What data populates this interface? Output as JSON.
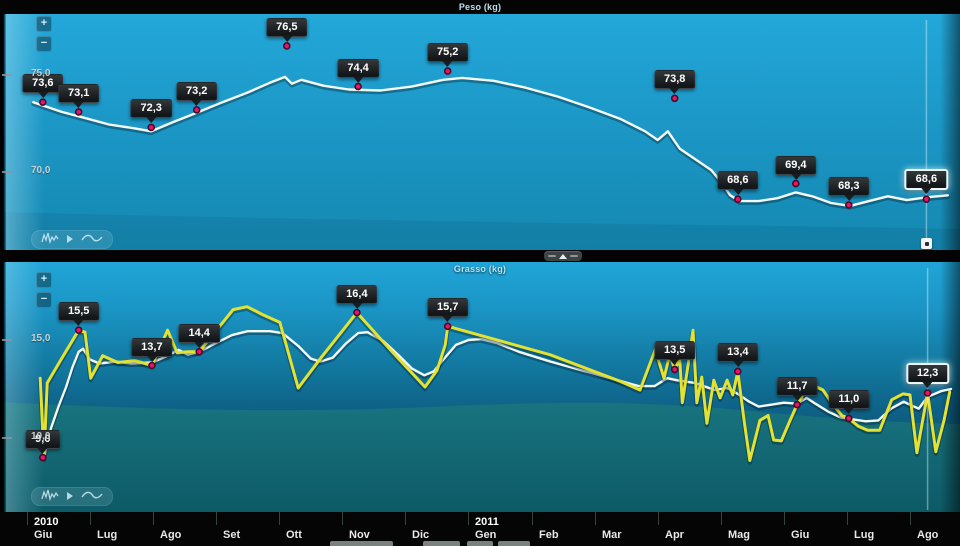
{
  "controls": {
    "zoom_in": "+",
    "zoom_out": "−"
  },
  "colors": {
    "chart_blue_top": "#23a8d9",
    "chart_blue_deep": "#0a4868",
    "band_teal": "#18747f",
    "trend_line": "#f5faf5",
    "raw_line": "#e3e233",
    "marker": "#e8136b",
    "marker_ring": "#4a0a24",
    "callout_bg": "#1a1d1f",
    "selected_outline": "#ecf6f8",
    "axis_bg": "#050505",
    "title_text": "#b9e2ef"
  },
  "x_axis": {
    "labels": [
      {
        "month": "Giu",
        "year": "2010"
      },
      {
        "month": "Lug"
      },
      {
        "month": "Ago"
      },
      {
        "month": "Set"
      },
      {
        "month": "Ott"
      },
      {
        "month": "Nov"
      },
      {
        "month": "Dic"
      },
      {
        "month": "Gen",
        "year": "2011"
      },
      {
        "month": "Feb"
      },
      {
        "month": "Mar"
      },
      {
        "month": "Apr"
      },
      {
        "month": "Mag"
      },
      {
        "month": "Giu"
      },
      {
        "month": "Lug"
      },
      {
        "month": "Ago"
      }
    ]
  },
  "chart_data": [
    {
      "type": "line",
      "title": "Peso (kg)",
      "unit": "kg",
      "y_axis_range": [
        67.5,
        77.5
      ],
      "y_ticks": [
        {
          "label": "75,0",
          "value": 75
        },
        {
          "label": "70,0",
          "value": 70
        }
      ],
      "labeled_points": [
        {
          "label": "73,6",
          "value": 73.6,
          "x_month": 0.25
        },
        {
          "label": "73,1",
          "value": 73.1,
          "x_month": 0.82
        },
        {
          "label": "72,3",
          "value": 72.3,
          "x_month": 1.97
        },
        {
          "label": "73,2",
          "value": 73.2,
          "x_month": 2.69
        },
        {
          "label": "76,5",
          "value": 76.5,
          "x_month": 4.12
        },
        {
          "label": "74,4",
          "value": 74.4,
          "x_month": 5.25
        },
        {
          "label": "75,2",
          "value": 75.2,
          "x_month": 6.67
        },
        {
          "label": "73,8",
          "value": 73.8,
          "x_month": 10.27
        },
        {
          "label": "68,6",
          "value": 68.6,
          "x_month": 11.27
        },
        {
          "label": "69,4",
          "value": 69.4,
          "x_month": 12.19
        },
        {
          "label": "68,3",
          "value": 68.3,
          "x_month": 13.03
        },
        {
          "label": "68,6",
          "value": 68.6,
          "x_month": 14.26,
          "selected": true
        }
      ],
      "series": [
        {
          "name": "trend",
          "color": "#f5faf5",
          "points": [
            [
              0.1,
              73.6
            ],
            [
              0.55,
              73.1
            ],
            [
              0.9,
              72.8
            ],
            [
              1.3,
              72.45
            ],
            [
              1.7,
              72.25
            ],
            [
              1.97,
              72.1
            ],
            [
              2.3,
              72.55
            ],
            [
              2.69,
              73.05
            ],
            [
              3.1,
              73.6
            ],
            [
              3.5,
              74.1
            ],
            [
              3.85,
              74.6
            ],
            [
              4.09,
              74.9
            ],
            [
              4.2,
              74.55
            ],
            [
              4.35,
              74.75
            ],
            [
              4.7,
              74.45
            ],
            [
              5.1,
              74.25
            ],
            [
              5.6,
              74.2
            ],
            [
              6.1,
              74.4
            ],
            [
              6.6,
              74.75
            ],
            [
              6.9,
              74.85
            ],
            [
              7.4,
              74.7
            ],
            [
              7.9,
              74.35
            ],
            [
              8.4,
              73.9
            ],
            [
              8.9,
              73.35
            ],
            [
              9.4,
              72.75
            ],
            [
              9.8,
              72.1
            ],
            [
              10.0,
              71.65
            ],
            [
              10.16,
              72.1
            ],
            [
              10.35,
              71.2
            ],
            [
              10.6,
              70.65
            ],
            [
              10.85,
              70.1
            ],
            [
              11.0,
              69.5
            ],
            [
              11.15,
              68.8
            ],
            [
              11.3,
              68.5
            ],
            [
              11.6,
              68.5
            ],
            [
              11.9,
              68.65
            ],
            [
              12.19,
              68.95
            ],
            [
              12.45,
              68.75
            ],
            [
              12.75,
              68.4
            ],
            [
              13.05,
              68.25
            ],
            [
              13.35,
              68.5
            ],
            [
              13.65,
              68.75
            ],
            [
              13.95,
              68.55
            ],
            [
              14.28,
              68.7
            ],
            [
              14.6,
              68.8
            ]
          ]
        }
      ]
    },
    {
      "type": "line",
      "title": "Grasso (kg)",
      "unit": "kg",
      "y_axis_range": [
        6.2,
        19.0
      ],
      "y_ticks": [
        {
          "label": "15,0",
          "value": 15
        },
        {
          "label": "10,0",
          "value": 10
        }
      ],
      "labeled_points": [
        {
          "label": "9,0",
          "value": 9.0,
          "x_month": 0.25
        },
        {
          "label": "15,5",
          "value": 15.5,
          "x_month": 0.82
        },
        {
          "label": "13,7",
          "value": 13.7,
          "x_month": 1.98
        },
        {
          "label": "14,4",
          "value": 14.4,
          "x_month": 2.73
        },
        {
          "label": "16,4",
          "value": 16.4,
          "x_month": 5.23
        },
        {
          "label": "15,7",
          "value": 15.7,
          "x_month": 6.67
        },
        {
          "label": "13,5",
          "value": 13.5,
          "x_month": 10.27
        },
        {
          "label": "13,4",
          "value": 13.4,
          "x_month": 11.27
        },
        {
          "label": "11,7",
          "value": 11.7,
          "x_month": 12.21
        },
        {
          "label": "11,0",
          "value": 11.0,
          "x_month": 13.03
        },
        {
          "label": "12,3",
          "value": 12.3,
          "x_month": 14.28,
          "selected": true
        }
      ],
      "series": [
        {
          "name": "trend",
          "color": "#f5faf5",
          "points": [
            [
              0.27,
              9.0
            ],
            [
              0.38,
              10.5
            ],
            [
              0.5,
              11.6
            ],
            [
              0.62,
              12.6
            ],
            [
              0.72,
              13.6
            ],
            [
              0.82,
              14.4
            ],
            [
              0.89,
              14.55
            ],
            [
              1.0,
              14.0
            ],
            [
              1.15,
              13.8
            ],
            [
              1.4,
              13.9
            ],
            [
              1.65,
              13.8
            ],
            [
              1.98,
              13.85
            ],
            [
              2.2,
              14.15
            ],
            [
              2.4,
              14.5
            ],
            [
              2.55,
              14.25
            ],
            [
              2.73,
              14.4
            ],
            [
              3.0,
              14.85
            ],
            [
              3.25,
              15.25
            ],
            [
              3.5,
              15.45
            ],
            [
              3.85,
              15.45
            ],
            [
              4.05,
              15.35
            ],
            [
              4.3,
              14.7
            ],
            [
              4.5,
              14.05
            ],
            [
              4.65,
              13.9
            ],
            [
              4.85,
              14.1
            ],
            [
              5.05,
              14.8
            ],
            [
              5.25,
              15.35
            ],
            [
              5.4,
              15.4
            ],
            [
              5.65,
              14.95
            ],
            [
              5.9,
              14.2
            ],
            [
              6.1,
              13.55
            ],
            [
              6.3,
              13.2
            ],
            [
              6.45,
              13.4
            ],
            [
              6.6,
              14.0
            ],
            [
              6.8,
              14.75
            ],
            [
              7.0,
              15.0
            ],
            [
              7.2,
              15.05
            ],
            [
              7.45,
              14.85
            ],
            [
              7.8,
              14.4
            ],
            [
              8.3,
              13.9
            ],
            [
              8.8,
              13.45
            ],
            [
              9.25,
              13.05
            ],
            [
              9.7,
              12.65
            ],
            [
              9.95,
              12.65
            ],
            [
              10.15,
              13.05
            ],
            [
              10.3,
              12.95
            ],
            [
              10.6,
              12.8
            ],
            [
              10.9,
              12.45
            ],
            [
              11.1,
              12.55
            ],
            [
              11.27,
              12.25
            ],
            [
              11.45,
              11.85
            ],
            [
              11.6,
              11.6
            ],
            [
              11.8,
              11.7
            ],
            [
              12.0,
              11.8
            ],
            [
              12.21,
              11.75
            ],
            [
              12.36,
              12.05
            ],
            [
              12.5,
              11.75
            ],
            [
              12.7,
              11.35
            ],
            [
              12.9,
              11.05
            ],
            [
              13.1,
              10.95
            ],
            [
              13.3,
              10.85
            ],
            [
              13.5,
              10.9
            ],
            [
              13.7,
              11.5
            ],
            [
              13.9,
              11.85
            ],
            [
              14.03,
              11.65
            ],
            [
              14.14,
              11.5
            ],
            [
              14.28,
              12.1
            ],
            [
              14.5,
              12.4
            ],
            [
              14.65,
              12.5
            ]
          ]
        },
        {
          "name": "raw",
          "color": "#e3e233",
          "points": [
            [
              0.21,
              13.05
            ],
            [
              0.27,
              9.0
            ],
            [
              0.32,
              12.8
            ],
            [
              0.52,
              13.9
            ],
            [
              0.82,
              15.5
            ],
            [
              0.92,
              15.4
            ],
            [
              1.01,
              13.05
            ],
            [
              1.2,
              14.2
            ],
            [
              1.44,
              13.85
            ],
            [
              1.71,
              13.95
            ],
            [
              1.98,
              13.7
            ],
            [
              2.23,
              15.5
            ],
            [
              2.38,
              14.35
            ],
            [
              2.55,
              14.4
            ],
            [
              2.73,
              14.4
            ],
            [
              2.98,
              15.4
            ],
            [
              3.27,
              16.55
            ],
            [
              3.49,
              16.7
            ],
            [
              3.73,
              16.3
            ],
            [
              4.01,
              15.9
            ],
            [
              4.3,
              12.55
            ],
            [
              4.64,
              14.0
            ],
            [
              5.23,
              16.4
            ],
            [
              5.76,
              14.5
            ],
            [
              6.31,
              12.6
            ],
            [
              6.5,
              13.45
            ],
            [
              6.63,
              14.75
            ],
            [
              6.67,
              15.7
            ],
            [
              8.29,
              14.25
            ],
            [
              9.4,
              12.9
            ],
            [
              9.72,
              12.45
            ],
            [
              9.96,
              14.5
            ],
            [
              10.1,
              13.05
            ],
            [
              10.19,
              14.25
            ],
            [
              10.27,
              13.5
            ],
            [
              10.35,
              14.0
            ],
            [
              10.39,
              11.8
            ],
            [
              10.48,
              13.7
            ],
            [
              10.56,
              15.5
            ],
            [
              10.62,
              11.8
            ],
            [
              10.7,
              13.1
            ],
            [
              10.78,
              10.75
            ],
            [
              10.89,
              12.95
            ],
            [
              10.99,
              12.05
            ],
            [
              11.1,
              12.95
            ],
            [
              11.19,
              12.2
            ],
            [
              11.27,
              13.4
            ],
            [
              11.37,
              10.9
            ],
            [
              11.46,
              8.85
            ],
            [
              11.62,
              10.9
            ],
            [
              11.75,
              11.15
            ],
            [
              11.84,
              9.9
            ],
            [
              11.96,
              9.85
            ],
            [
              12.1,
              10.9
            ],
            [
              12.21,
              11.7
            ],
            [
              12.35,
              12.45
            ],
            [
              12.52,
              12.6
            ],
            [
              12.62,
              12.45
            ],
            [
              12.78,
              11.7
            ],
            [
              12.92,
              11.15
            ],
            [
              13.03,
              11.0
            ],
            [
              13.18,
              10.6
            ],
            [
              13.33,
              10.4
            ],
            [
              13.52,
              10.4
            ],
            [
              13.71,
              11.95
            ],
            [
              13.89,
              12.25
            ],
            [
              14.0,
              12.2
            ],
            [
              14.11,
              9.25
            ],
            [
              14.28,
              12.3
            ],
            [
              14.41,
              9.3
            ],
            [
              14.54,
              10.9
            ],
            [
              14.63,
              12.35
            ]
          ]
        }
      ]
    }
  ]
}
